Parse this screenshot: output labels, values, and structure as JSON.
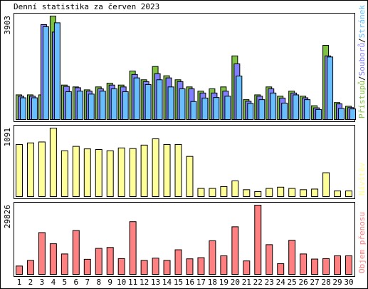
{
  "chart_data": {
    "type": "bar",
    "title": "Denní statistika za červen 2023",
    "categories": [
      "1",
      "2",
      "3",
      "4",
      "5",
      "6",
      "7",
      "8",
      "9",
      "10",
      "11",
      "12",
      "13",
      "14",
      "15",
      "16",
      "17",
      "18",
      "19",
      "20",
      "21",
      "22",
      "23",
      "24",
      "25",
      "26",
      "27",
      "28",
      "29",
      "30"
    ],
    "weekend_days": [
      "3",
      "4",
      "10",
      "11",
      "17",
      "18",
      "24",
      "25"
    ],
    "colors": {
      "frame": "#000000",
      "panel_bg": "#ffffff",
      "visits": "#7fc241",
      "files": "#7f7fff",
      "hits": "#68bfff",
      "visitors": "#ffff99",
      "traffic": "#ff8080",
      "weekday_label": "#000000",
      "weekend_label": "#7fc241"
    },
    "panels": [
      {
        "id": "hits-files-visits",
        "ymax_label": "3903",
        "ymax": 3903,
        "legend": [
          {
            "text": "Přístupů",
            "color": "#7fc241"
          },
          {
            "text": "/",
            "color": "#000000"
          },
          {
            "text": "Souborů",
            "color": "#7f7fff"
          },
          {
            "text": "/",
            "color": "#000000"
          },
          {
            "text": "Stránek",
            "color": "#68bfff"
          }
        ],
        "series": [
          {
            "name": "Přístupů",
            "color": "#7fc241",
            "values": [
              930,
              930,
              930,
              3903,
              1300,
              1230,
              1120,
              1230,
              1370,
              1300,
              1830,
              1500,
              2000,
              1650,
              1500,
              1230,
              1070,
              1160,
              1230,
              2400,
              750,
              930,
              1230,
              880,
              1070,
              880,
              520,
              2800,
              640,
              500
            ]
          },
          {
            "name": "Souborů",
            "color": "#7f7fff",
            "values": [
              880,
              880,
              3580,
              3300,
              1250,
              1200,
              1070,
              1160,
              1300,
              1230,
              1700,
              1430,
              1730,
              1570,
              1430,
              1160,
              1000,
              1000,
              1070,
              2100,
              690,
              880,
              1160,
              810,
              1000,
              820,
              440,
              2400,
              590,
              450
            ]
          },
          {
            "name": "Stránek",
            "color": "#68bfff",
            "values": [
              820,
              820,
              3500,
              3650,
              1050,
              1070,
              960,
              1070,
              1160,
              1050,
              1570,
              1320,
              1500,
              1230,
              1160,
              680,
              810,
              830,
              880,
              1640,
              610,
              750,
              1000,
              620,
              930,
              750,
              380,
              2360,
              420,
              400
            ]
          }
        ]
      },
      {
        "id": "visitors",
        "ymax_label": "1091",
        "ymax": 1091,
        "legend": [
          {
            "text": "Návštěv",
            "color": "#ffff99"
          }
        ],
        "series": [
          {
            "name": "Návštěv",
            "color": "#ffff99",
            "values": [
              830,
              855,
              870,
              1091,
              730,
              800,
              760,
              750,
              730,
              775,
              765,
              820,
              920,
              830,
              830,
              640,
              130,
              130,
              160,
              250,
              110,
              80,
              130,
              150,
              130,
              110,
              120,
              380,
              90,
              90
            ]
          }
        ]
      },
      {
        "id": "traffic",
        "ymax_label": "29826",
        "ymax": 29826,
        "legend": [
          {
            "text": "Objem přenosu",
            "color": "#ff8080"
          }
        ],
        "series": [
          {
            "name": "Objem přenosu",
            "color": "#ff8080",
            "values": [
              3600,
              6000,
              18000,
              13200,
              8800,
              18900,
              6500,
              11200,
              11600,
              6800,
              22700,
              6000,
              7000,
              6000,
              10600,
              6700,
              7200,
              14500,
              8000,
              20500,
              5800,
              29826,
              12800,
              4600,
              14700,
              8800,
              6600,
              6800,
              8000,
              8000
            ]
          }
        ]
      }
    ]
  }
}
